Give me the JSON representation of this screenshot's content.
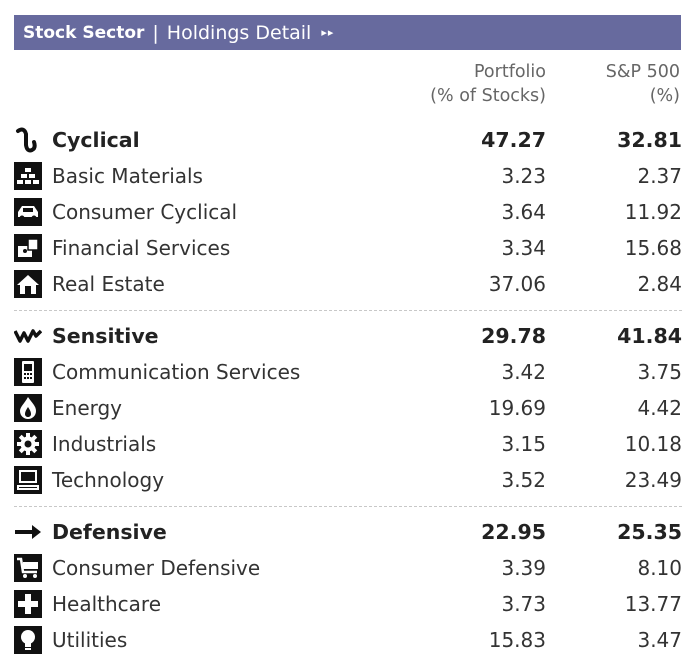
{
  "header": {
    "title": "Stock Sector",
    "separator": "|",
    "subtitle": "Holdings Detail",
    "arrows": "▸▸"
  },
  "columns": {
    "portfolio_line1": "Portfolio",
    "portfolio_line2": "(% of Stocks)",
    "sp_line1": "S&P 500",
    "sp_line2": "(%)"
  },
  "groups": [
    {
      "label": "Cyclical",
      "portfolio": "47.27",
      "sp500": "32.81",
      "icon": "cyclical-icon",
      "sectors": [
        {
          "label": "Basic Materials",
          "portfolio": "3.23",
          "sp500": "2.37",
          "icon": "basic-materials-icon"
        },
        {
          "label": "Consumer Cyclical",
          "portfolio": "3.64",
          "sp500": "11.92",
          "icon": "car-icon"
        },
        {
          "label": "Financial Services",
          "portfolio": "3.34",
          "sp500": "15.68",
          "icon": "financial-icon"
        },
        {
          "label": "Real Estate",
          "portfolio": "37.06",
          "sp500": "2.84",
          "icon": "house-icon"
        }
      ]
    },
    {
      "label": "Sensitive",
      "portfolio": "29.78",
      "sp500": "41.84",
      "icon": "sensitive-icon",
      "sectors": [
        {
          "label": "Communication Services",
          "portfolio": "3.42",
          "sp500": "3.75",
          "icon": "phone-icon"
        },
        {
          "label": "Energy",
          "portfolio": "19.69",
          "sp500": "4.42",
          "icon": "flame-icon"
        },
        {
          "label": "Industrials",
          "portfolio": "3.15",
          "sp500": "10.18",
          "icon": "gear-icon"
        },
        {
          "label": "Technology",
          "portfolio": "3.52",
          "sp500": "23.49",
          "icon": "computer-icon"
        }
      ]
    },
    {
      "label": "Defensive",
      "portfolio": "22.95",
      "sp500": "25.35",
      "icon": "defensive-icon",
      "sectors": [
        {
          "label": "Consumer Defensive",
          "portfolio": "3.39",
          "sp500": "8.10",
          "icon": "cart-icon"
        },
        {
          "label": "Healthcare",
          "portfolio": "3.73",
          "sp500": "13.77",
          "icon": "cross-icon"
        },
        {
          "label": "Utilities",
          "portfolio": "15.83",
          "sp500": "3.47",
          "icon": "bulb-icon"
        }
      ]
    }
  ],
  "colors": {
    "header_bg": "#676a9e",
    "text": "#333333"
  }
}
